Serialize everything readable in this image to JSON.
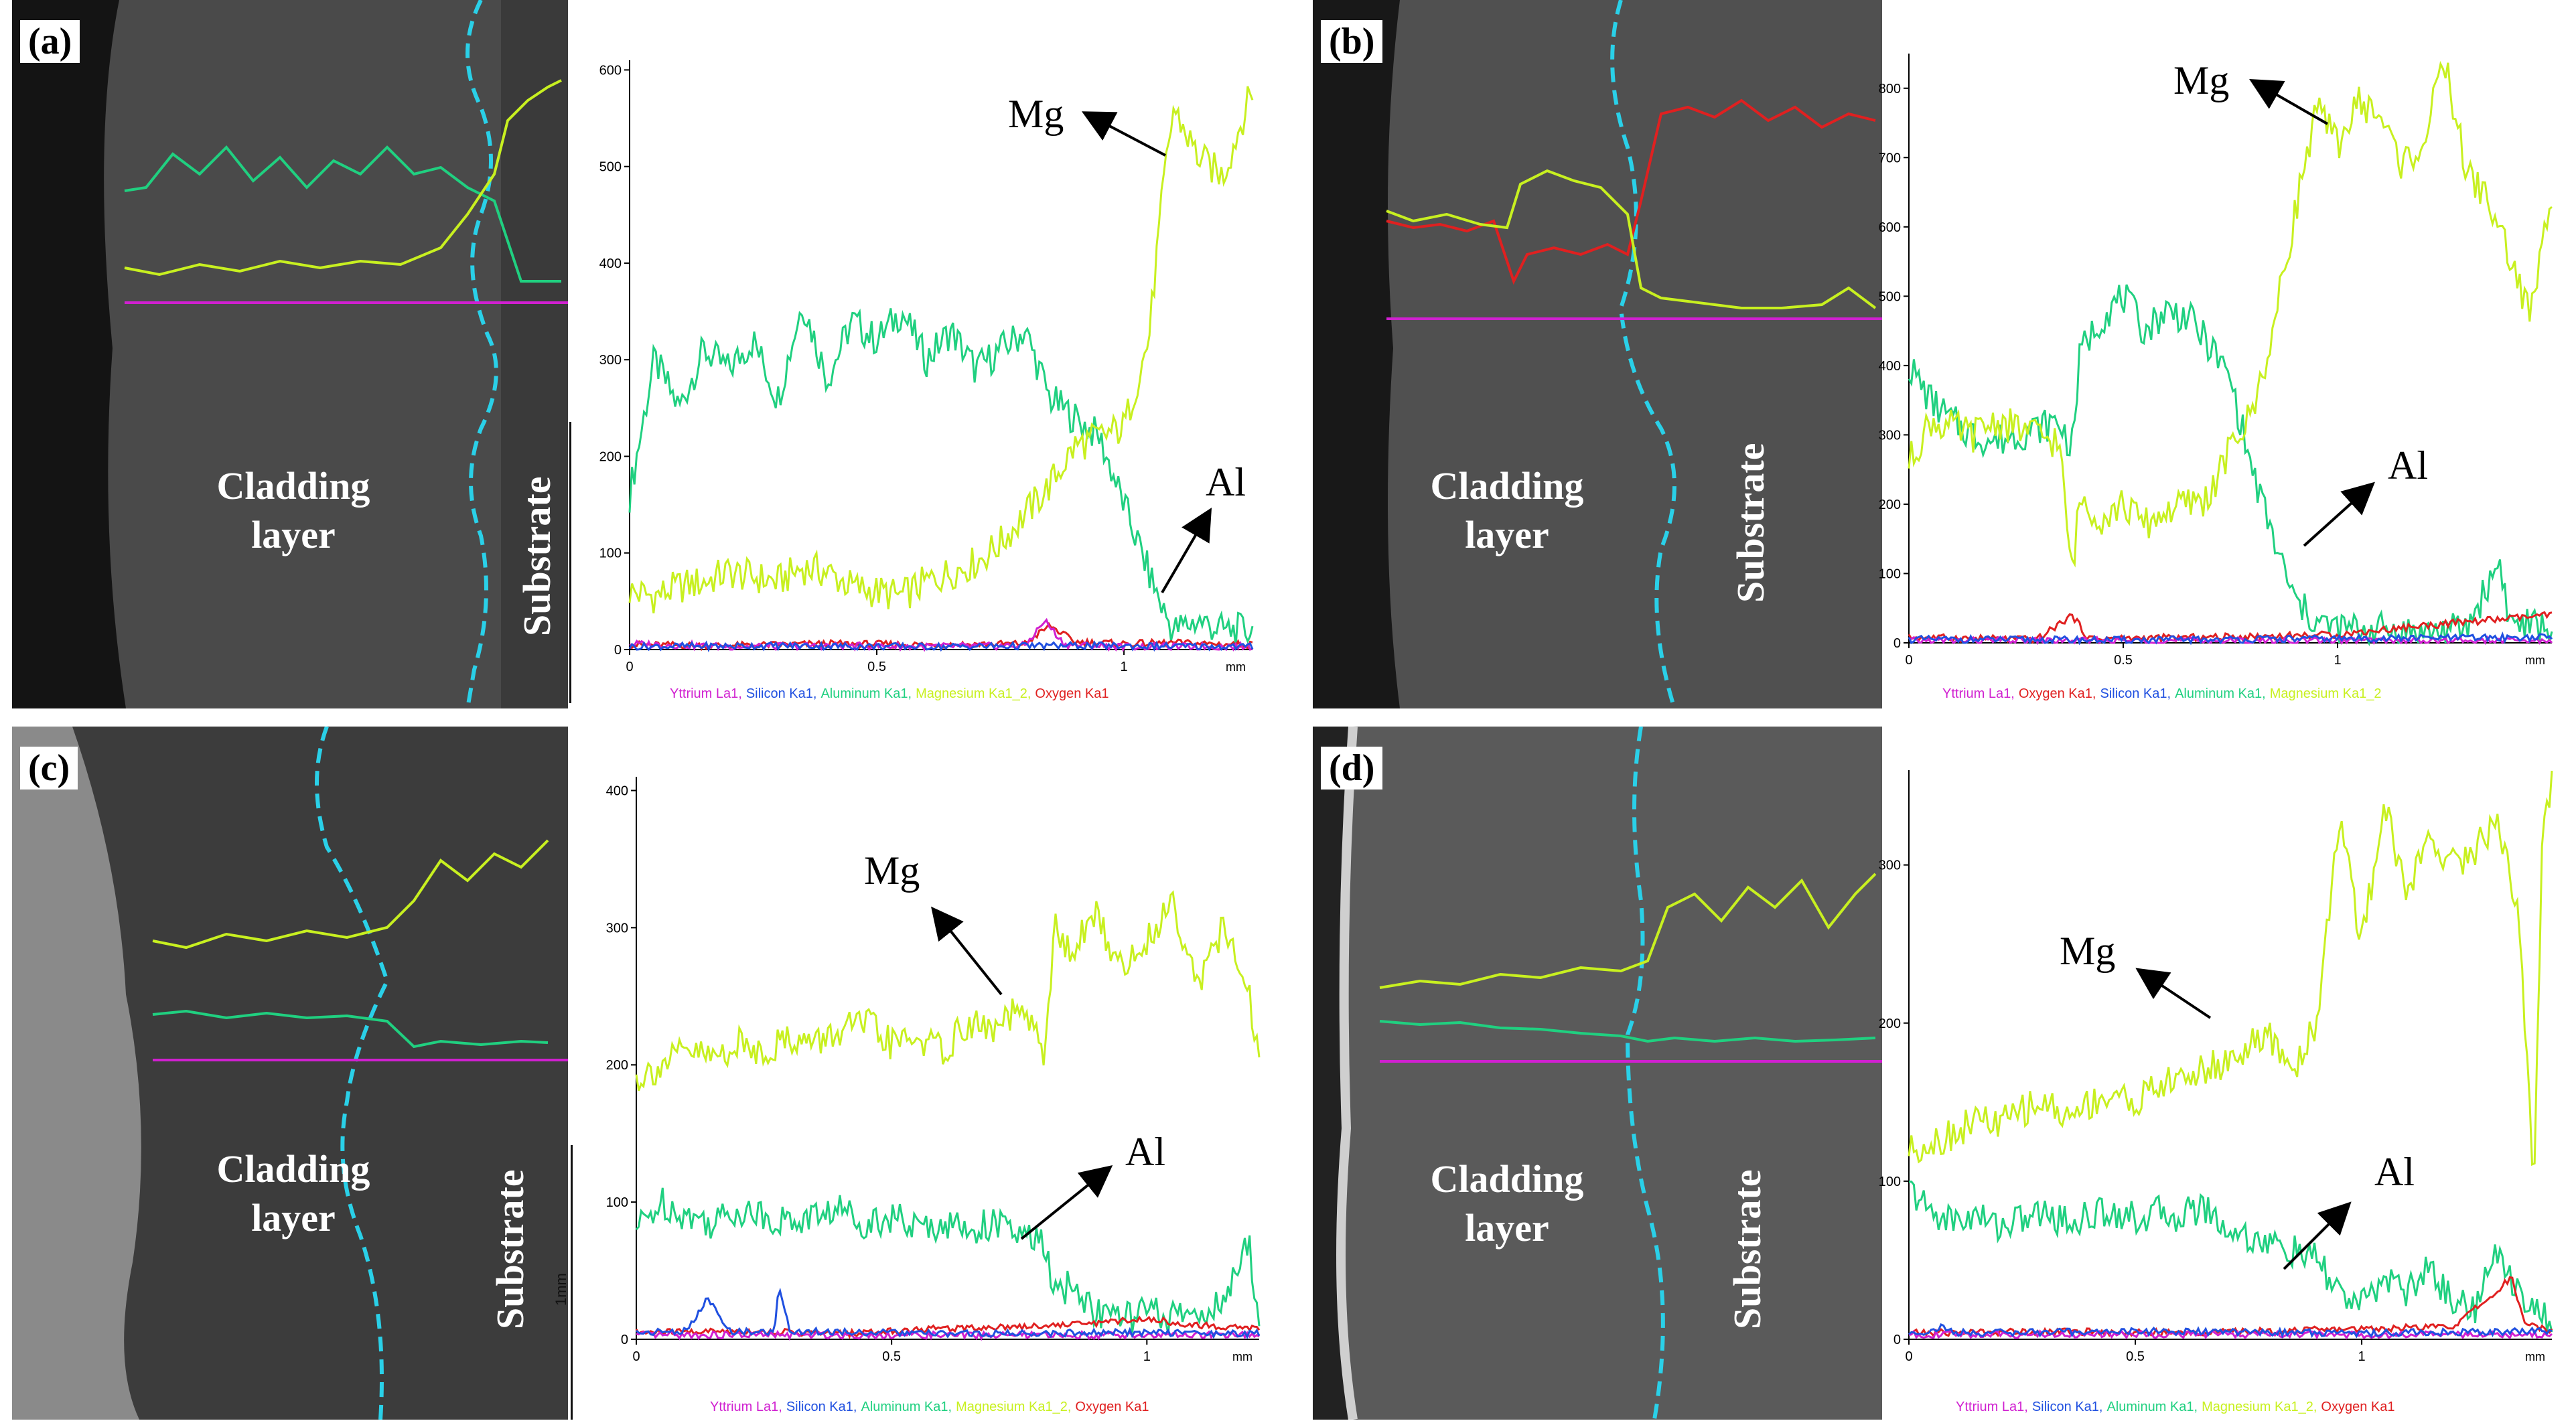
{
  "colors": {
    "Yttrium": "#d020d0",
    "Silicon": "#2050e0",
    "Aluminum": "#20d080",
    "Magnesium": "#c8f020",
    "Oxygen": "#e02020",
    "boundary": "#2ad0e8",
    "sem_bg": "#4a4a4a"
  },
  "panels": [
    {
      "label": "(a)",
      "region_cladding": "Cladding layer",
      "region_substrate": "Substrate",
      "chart_data": {
        "type": "line",
        "title": "",
        "xlabel": "mm",
        "ylabel": "",
        "xlim": [
          0,
          1.26
        ],
        "ylim": [
          0,
          610
        ],
        "xticks": [
          "0",
          "0.5",
          "1"
        ],
        "yticks": [
          "0",
          "100",
          "200",
          "300",
          "400",
          "500",
          "600"
        ],
        "legend": [
          "Yttrium La1",
          "Silicon Ka1",
          "Aluminum Ka1",
          "Magnesium Ka1_2",
          "Oxygen Ka1"
        ],
        "series": [
          {
            "name": "Aluminum Ka1",
            "element": "Aluminum",
            "x": [
              0,
              0.05,
              0.1,
              0.15,
              0.2,
              0.25,
              0.3,
              0.35,
              0.4,
              0.45,
              0.5,
              0.55,
              0.6,
              0.65,
              0.7,
              0.75,
              0.8,
              0.85,
              0.9,
              0.95,
              1.0,
              1.05,
              1.08,
              1.1,
              1.15,
              1.2,
              1.26
            ],
            "y": [
              160,
              300,
              250,
              310,
              290,
              320,
              260,
              360,
              280,
              340,
              320,
              350,
              300,
              330,
              290,
              310,
              330,
              260,
              240,
              220,
              150,
              80,
              40,
              20,
              30,
              20,
              20
            ]
          },
          {
            "name": "Magnesium Ka1_2",
            "element": "Magnesium",
            "x": [
              0,
              0.05,
              0.1,
              0.15,
              0.2,
              0.25,
              0.3,
              0.35,
              0.4,
              0.45,
              0.5,
              0.55,
              0.6,
              0.65,
              0.7,
              0.75,
              0.8,
              0.85,
              0.9,
              0.95,
              1.0,
              1.05,
              1.08,
              1.1,
              1.15,
              1.2,
              1.26
            ],
            "y": [
              60,
              55,
              65,
              70,
              80,
              75,
              70,
              85,
              80,
              65,
              60,
              55,
              70,
              80,
              90,
              110,
              140,
              170,
              210,
              220,
              230,
              320,
              480,
              560,
              510,
              490,
              580
            ]
          },
          {
            "name": "Oxygen Ka1",
            "element": "Oxygen",
            "x": [
              0,
              0.2,
              0.4,
              0.6,
              0.8,
              0.85,
              0.9,
              1.0,
              1.1,
              1.26
            ],
            "y": [
              5,
              4,
              6,
              5,
              6,
              25,
              8,
              6,
              7,
              5
            ]
          },
          {
            "name": "Yttrium La1",
            "element": "Yttrium",
            "x": [
              0,
              0.2,
              0.4,
              0.6,
              0.8,
              0.84,
              0.88,
              1.0,
              1.26
            ],
            "y": [
              6,
              3,
              4,
              3,
              4,
              30,
              5,
              3,
              3
            ]
          },
          {
            "name": "Silicon Ka1",
            "element": "Silicon",
            "x": [
              0,
              0.3,
              0.6,
              0.9,
              1.26
            ],
            "y": [
              3,
              4,
              3,
              4,
              3
            ]
          }
        ],
        "annotations": [
          {
            "text": "Mg",
            "element": "Magnesium"
          },
          {
            "text": "Al",
            "element": "Aluminum"
          }
        ]
      }
    },
    {
      "label": "(b)",
      "region_cladding": "Cladding layer",
      "region_substrate": "Substrate",
      "chart_data": {
        "type": "line",
        "title": "",
        "xlabel": "mm",
        "ylabel": "",
        "xlim": [
          0,
          1.5
        ],
        "ylim": [
          0,
          850
        ],
        "xticks": [
          "0",
          "0.5",
          "1"
        ],
        "yticks": [
          "0",
          "100",
          "200",
          "300",
          "400",
          "500",
          "600",
          "700",
          "800"
        ],
        "legend": [
          "Yttrium La1",
          "Oxygen Ka1",
          "Silicon Ka1",
          "Aluminum Ka1",
          "Magnesium Ka1_2"
        ],
        "series": [
          {
            "name": "Aluminum Ka1",
            "element": "Aluminum",
            "x": [
              0,
              0.05,
              0.1,
              0.15,
              0.2,
              0.25,
              0.3,
              0.35,
              0.38,
              0.4,
              0.45,
              0.5,
              0.55,
              0.6,
              0.65,
              0.7,
              0.75,
              0.8,
              0.85,
              0.9,
              0.95,
              1.0,
              1.1,
              1.2,
              1.3,
              1.38,
              1.4,
              1.5
            ],
            "y": [
              400,
              350,
              320,
              300,
              290,
              300,
              310,
              320,
              280,
              420,
              470,
              500,
              450,
              480,
              470,
              430,
              380,
              250,
              150,
              60,
              30,
              20,
              20,
              15,
              20,
              120,
              30,
              20
            ]
          },
          {
            "name": "Magnesium Ka1_2",
            "element": "Magnesium",
            "x": [
              0,
              0.05,
              0.1,
              0.15,
              0.2,
              0.25,
              0.3,
              0.35,
              0.38,
              0.4,
              0.45,
              0.5,
              0.55,
              0.6,
              0.65,
              0.7,
              0.75,
              0.8,
              0.85,
              0.9,
              0.95,
              1.0,
              1.05,
              1.1,
              1.15,
              1.2,
              1.25,
              1.3,
              1.35,
              1.4,
              1.45,
              1.5
            ],
            "y": [
              260,
              320,
              310,
              300,
              320,
              310,
              300,
              290,
              100,
              210,
              180,
              200,
              170,
              190,
              200,
              210,
              280,
              330,
              450,
              620,
              770,
              720,
              780,
              760,
              690,
              720,
              840,
              680,
              640,
              560,
              470,
              650
            ]
          },
          {
            "name": "Oxygen Ka1",
            "element": "Oxygen",
            "x": [
              0,
              0.3,
              0.38,
              0.42,
              0.7,
              1.0,
              1.2,
              1.4,
              1.5
            ],
            "y": [
              8,
              5,
              40,
              6,
              8,
              12,
              25,
              35,
              40
            ]
          },
          {
            "name": "Yttrium La1",
            "element": "Yttrium",
            "x": [
              0,
              0.5,
              1.0,
              1.5
            ],
            "y": [
              3,
              3,
              3,
              3
            ]
          },
          {
            "name": "Silicon Ka1",
            "element": "Silicon",
            "x": [
              0,
              0.5,
              1.0,
              1.5
            ],
            "y": [
              5,
              4,
              6,
              8
            ]
          }
        ],
        "annotations": [
          {
            "text": "Mg",
            "element": "Magnesium"
          },
          {
            "text": "Al",
            "element": "Aluminum"
          }
        ]
      }
    },
    {
      "label": "(c)",
      "region_cladding": "Cladding layer",
      "region_substrate": "Substrate",
      "scale_bar": "1mm",
      "chart_data": {
        "type": "line",
        "title": "",
        "xlabel": "mm",
        "ylabel": "",
        "xlim": [
          0,
          1.22
        ],
        "ylim": [
          0,
          410
        ],
        "xticks": [
          "0",
          "0.5",
          "1"
        ],
        "yticks": [
          "0",
          "100",
          "200",
          "300",
          "400"
        ],
        "legend": [
          "Yttrium La1",
          "Silicon Ka1",
          "Aluminum Ka1",
          "Magnesium Ka1_2",
          "Oxygen Ka1"
        ],
        "series": [
          {
            "name": "Aluminum Ka1",
            "element": "Aluminum",
            "x": [
              0,
              0.05,
              0.1,
              0.15,
              0.2,
              0.25,
              0.3,
              0.35,
              0.4,
              0.45,
              0.5,
              0.55,
              0.6,
              0.65,
              0.7,
              0.75,
              0.8,
              0.82,
              0.85,
              0.9,
              0.95,
              1.0,
              1.05,
              1.1,
              1.15,
              1.2,
              1.22
            ],
            "y": [
              80,
              100,
              90,
              85,
              95,
              90,
              85,
              90,
              95,
              85,
              90,
              80,
              85,
              80,
              85,
              75,
              70,
              30,
              40,
              20,
              15,
              20,
              15,
              20,
              25,
              70,
              15
            ]
          },
          {
            "name": "Magnesium Ka1_2",
            "element": "Magnesium",
            "x": [
              0,
              0.05,
              0.1,
              0.15,
              0.2,
              0.25,
              0.3,
              0.35,
              0.4,
              0.45,
              0.5,
              0.55,
              0.6,
              0.65,
              0.7,
              0.75,
              0.8,
              0.82,
              0.85,
              0.9,
              0.95,
              1.0,
              1.05,
              1.1,
              1.15,
              1.2,
              1.22
            ],
            "y": [
              190,
              200,
              210,
              205,
              215,
              210,
              220,
              215,
              225,
              230,
              215,
              220,
              210,
              230,
              225,
              240,
              210,
              300,
              280,
              310,
              270,
              290,
              320,
              260,
              300,
              250,
              200
            ]
          },
          {
            "name": "Oxygen Ka1",
            "element": "Oxygen",
            "x": [
              0,
              0.2,
              0.4,
              0.6,
              0.8,
              0.9,
              1.0,
              1.1,
              1.22
            ],
            "y": [
              5,
              6,
              4,
              8,
              10,
              12,
              15,
              10,
              8
            ]
          },
          {
            "name": "Yttrium La1",
            "element": "Yttrium",
            "x": [
              0,
              0.5,
              1.0,
              1.22
            ],
            "y": [
              3,
              3,
              3,
              3
            ]
          },
          {
            "name": "Silicon Ka1",
            "element": "Silicon",
            "x": [
              0,
              0.1,
              0.14,
              0.18,
              0.27,
              0.28,
              0.3,
              0.6,
              1.0,
              1.22
            ],
            "y": [
              5,
              6,
              30,
              6,
              5,
              40,
              6,
              4,
              5,
              4
            ]
          }
        ],
        "annotations": [
          {
            "text": "Mg",
            "element": "Magnesium"
          },
          {
            "text": "Al",
            "element": "Aluminum"
          }
        ]
      }
    },
    {
      "label": "(d)",
      "region_cladding": "Cladding layer",
      "region_substrate": "Substrate",
      "chart_data": {
        "type": "line",
        "title": "",
        "xlabel": "mm",
        "ylabel": "",
        "xlim": [
          0,
          1.42
        ],
        "ylim": [
          0,
          360
        ],
        "xticks": [
          "0",
          "0.5",
          "1"
        ],
        "yticks": [
          "0",
          "100",
          "200",
          "300"
        ],
        "legend": [
          "Yttrium La1",
          "Silicon Ka1",
          "Aluminum Ka1",
          "Magnesium Ka1_2",
          "Oxygen Ka1"
        ],
        "series": [
          {
            "name": "Aluminum Ka1",
            "element": "Aluminum",
            "x": [
              0,
              0.05,
              0.1,
              0.15,
              0.2,
              0.25,
              0.3,
              0.35,
              0.4,
              0.45,
              0.5,
              0.55,
              0.6,
              0.65,
              0.7,
              0.75,
              0.8,
              0.85,
              0.9,
              0.95,
              1.0,
              1.05,
              1.1,
              1.15,
              1.2,
              1.25,
              1.3,
              1.35,
              1.4,
              1.42
            ],
            "y": [
              95,
              80,
              75,
              78,
              72,
              76,
              80,
              74,
              78,
              82,
              76,
              80,
              78,
              85,
              70,
              65,
              60,
              55,
              50,
              30,
              20,
              40,
              30,
              45,
              25,
              20,
              55,
              30,
              15,
              10
            ]
          },
          {
            "name": "Magnesium Ka1_2",
            "element": "Magnesium",
            "x": [
              0,
              0.05,
              0.1,
              0.15,
              0.2,
              0.25,
              0.3,
              0.35,
              0.4,
              0.45,
              0.5,
              0.55,
              0.6,
              0.65,
              0.7,
              0.75,
              0.8,
              0.85,
              0.9,
              0.95,
              1.0,
              1.05,
              1.1,
              1.15,
              1.2,
              1.25,
              1.3,
              1.35,
              1.38,
              1.4,
              1.42
            ],
            "y": [
              120,
              125,
              130,
              140,
              135,
              145,
              150,
              140,
              150,
              155,
              150,
              160,
              165,
              170,
              175,
              185,
              190,
              170,
              200,
              330,
              250,
              340,
              280,
              320,
              300,
              310,
              330,
              260,
              90,
              330,
              350
            ]
          },
          {
            "name": "Oxygen Ka1",
            "element": "Oxygen",
            "x": [
              0,
              0.3,
              0.6,
              0.9,
              1.2,
              1.3,
              1.33,
              1.36,
              1.42
            ],
            "y": [
              4,
              5,
              4,
              6,
              8,
              30,
              40,
              10,
              6
            ]
          },
          {
            "name": "Yttrium La1",
            "element": "Yttrium",
            "x": [
              0,
              0.5,
              1.0,
              1.42
            ],
            "y": [
              3,
              3,
              3,
              3
            ]
          },
          {
            "name": "Silicon Ka1",
            "element": "Silicon",
            "x": [
              0,
              0.05,
              0.07,
              0.1,
              0.5,
              1.0,
              1.42
            ],
            "y": [
              4,
              5,
              8,
              4,
              5,
              4,
              5
            ]
          }
        ],
        "annotations": [
          {
            "text": "Mg",
            "element": "Magnesium"
          },
          {
            "text": "Al",
            "element": "Aluminum"
          }
        ]
      }
    }
  ]
}
